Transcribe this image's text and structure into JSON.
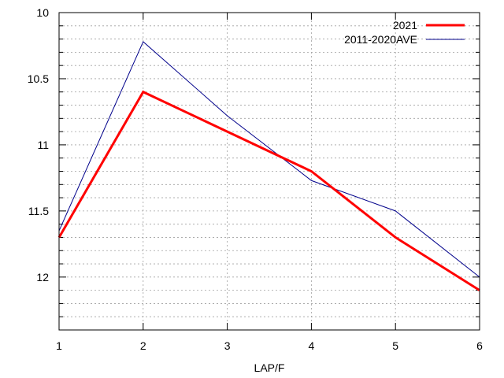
{
  "chart_data": {
    "type": "line",
    "title": "",
    "xlabel": "LAP/F",
    "ylabel": "",
    "x": [
      1,
      2,
      3,
      4,
      5,
      6
    ],
    "xlim": [
      1,
      6
    ],
    "ylim": [
      12.4,
      10.0
    ],
    "y_reversed": true,
    "x_ticks": [
      1,
      2,
      3,
      4,
      5,
      6
    ],
    "y_ticks": [
      10,
      10.5,
      11,
      11.5,
      12
    ],
    "y_tick_labels": [
      "10",
      "10.5",
      "11",
      "11.5",
      "12"
    ],
    "grid": true,
    "legend_position": "top-right",
    "series": [
      {
        "name": "2021",
        "values": [
          11.7,
          10.6,
          10.9,
          11.2,
          11.7,
          12.1
        ],
        "color": "#ff0000",
        "style": "thick"
      },
      {
        "name": "2011-2020AVE",
        "values": [
          11.65,
          10.22,
          10.78,
          11.27,
          11.5,
          12.0
        ],
        "color": "#00008b",
        "style": "thin"
      }
    ]
  }
}
